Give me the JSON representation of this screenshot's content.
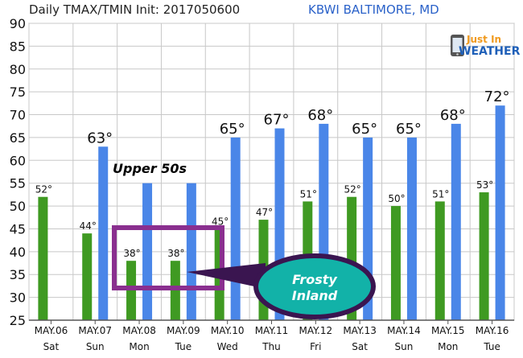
{
  "header": {
    "title": "Daily TMAX/TMIN Init: 2017050600",
    "station": "KBWI BALTIMORE, MD"
  },
  "logo": {
    "line1": "Just In",
    "line2": "WEATHER"
  },
  "colors": {
    "tmax": "#4a86e8",
    "tmin": "#3f9a22",
    "title_text": "#222222",
    "station_text": "#2b62c9",
    "highlight_box": "#8a2f8f",
    "bubble_fill": "#12b2a8",
    "bubble_border": "#3a1550"
  },
  "chart_data": {
    "type": "bar",
    "title": "Daily TMAX/TMIN Init: 2017050600",
    "categories": [
      "MAY.06",
      "MAY.07",
      "MAY.08",
      "MAY.09",
      "MAY.10",
      "MAY.11",
      "MAY.12",
      "MAY.13",
      "MAY.14",
      "MAY.15",
      "MAY.16"
    ],
    "days": [
      "Sat",
      "Sun",
      "Mon",
      "Tue",
      "Wed",
      "Thu",
      "Fri",
      "Sat",
      "Sun",
      "Mon",
      "Tue"
    ],
    "series": [
      {
        "key": "tmax",
        "values": [
          null,
          63,
          55,
          55,
          65,
          67,
          68,
          65,
          65,
          68,
          72
        ],
        "labels": [
          "",
          "63°",
          "",
          "",
          "65°",
          "67°",
          "68°",
          "65°",
          "65°",
          "68°",
          "72°"
        ]
      },
      {
        "key": "tmin",
        "values": [
          52,
          44,
          38,
          38,
          45,
          47,
          51,
          52,
          50,
          51,
          53
        ],
        "labels": [
          "52°",
          "44°",
          "38°",
          "38°",
          "45°",
          "47°",
          "51°",
          "52°",
          "50°",
          "51°",
          "53°"
        ]
      }
    ],
    "ylim": [
      25,
      90
    ],
    "yticks": [
      25,
      30,
      35,
      40,
      45,
      50,
      55,
      60,
      65,
      70,
      75,
      80,
      85,
      90
    ],
    "grid": true
  },
  "annotations": {
    "upper_label": "Upper 50s",
    "bubble_line1": "Frosty",
    "bubble_line2": "Inland"
  }
}
